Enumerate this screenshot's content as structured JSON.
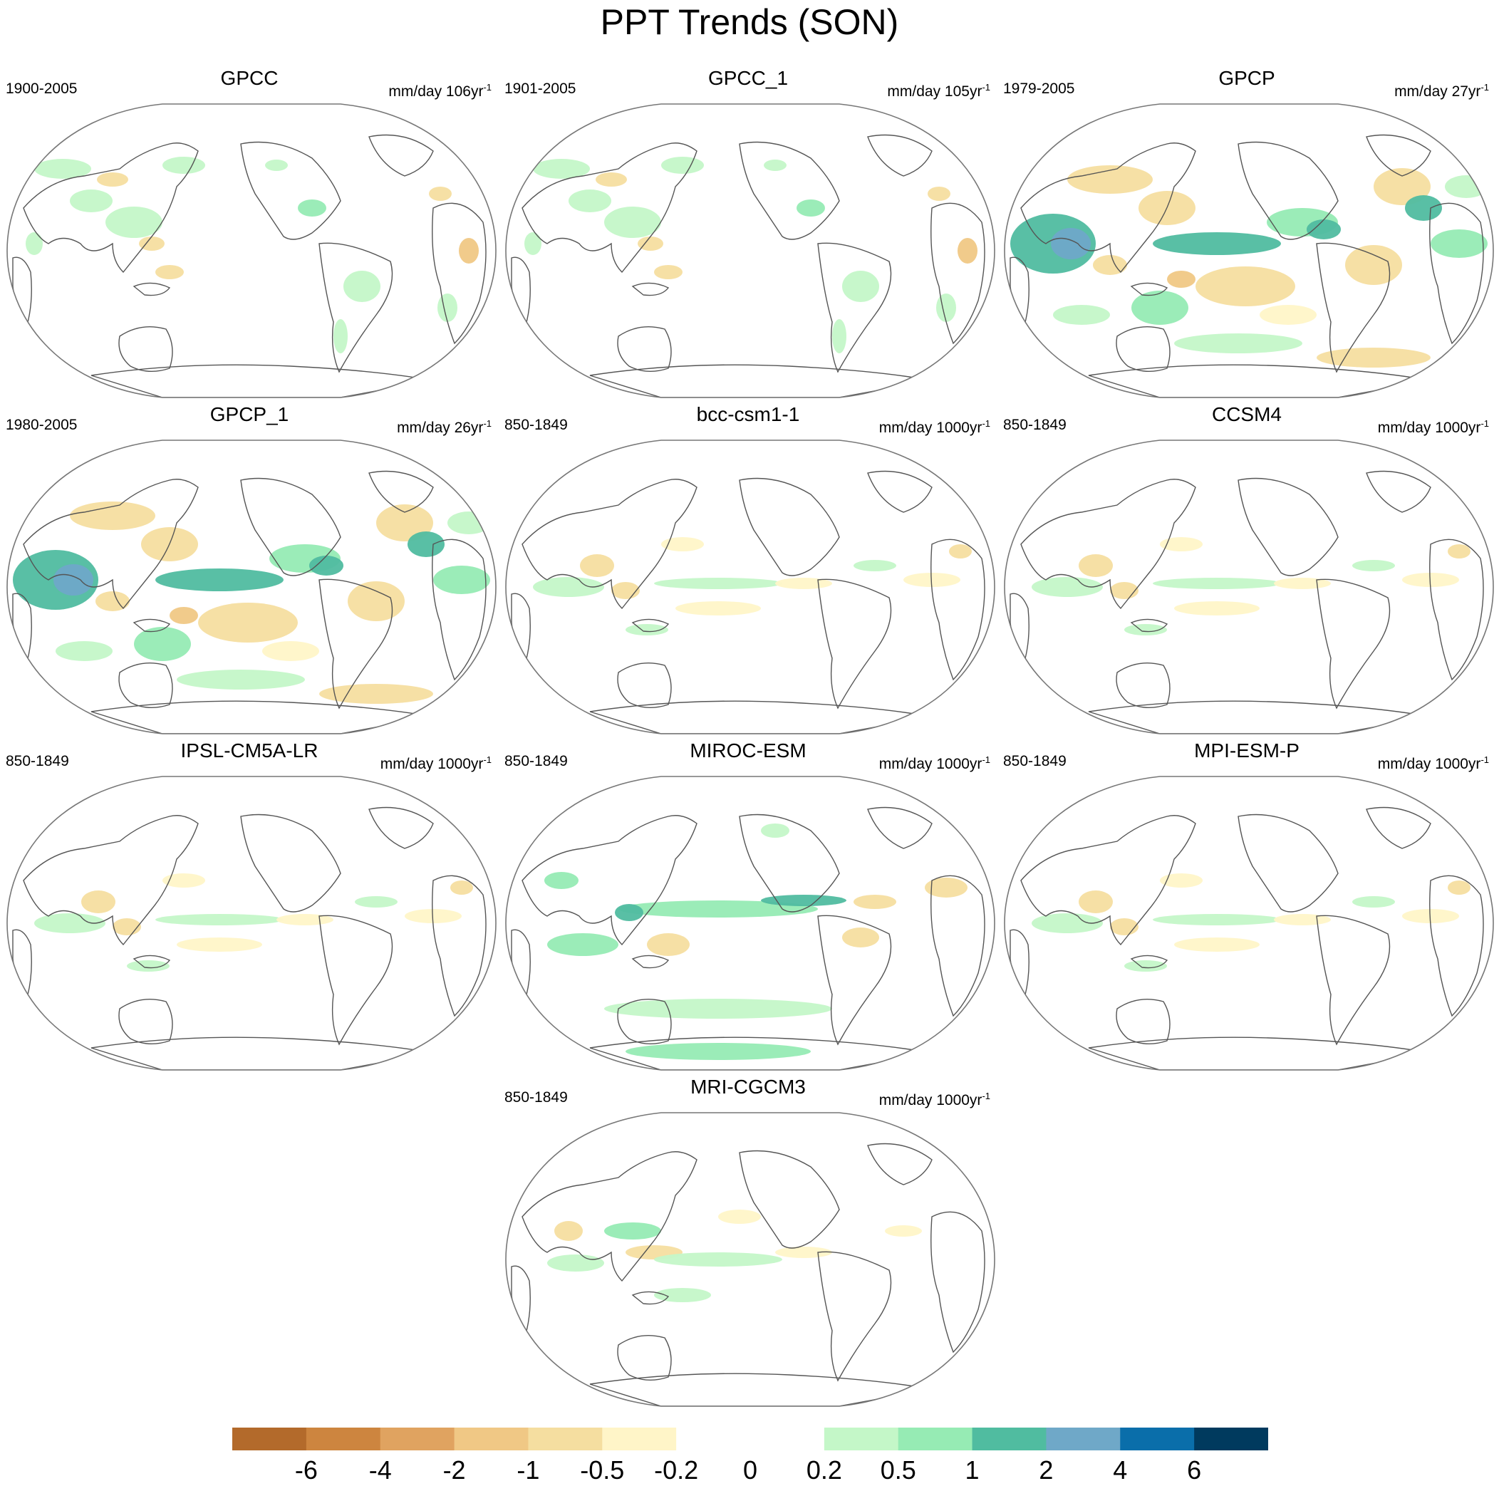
{
  "title": "PPT Trends (SON)",
  "colors": {
    "levels": [
      "#b36a2b",
      "#cd853f",
      "#e0a360",
      "#f0c885",
      "#f5dea0",
      "#fff5c8",
      "#ffffff",
      "#ffffff",
      "#c4f7c8",
      "#96ebb4",
      "#50bca0",
      "#6fa8c8",
      "#0a6eaa",
      "#003a5e"
    ],
    "coastline": "#555555",
    "frame": "#777777"
  },
  "chart_data": {
    "type": "heatmap",
    "projection": "Winkel tripel-like global map, centered on the Pacific",
    "colorbar": {
      "tick_labels": [
        "-6",
        "-4",
        "-2",
        "-1",
        "-0.5",
        "-0.2",
        "0",
        "0.2",
        "0.5",
        "1",
        "2",
        "4",
        "6"
      ],
      "levels": [
        -6,
        -4,
        -2,
        -1,
        -0.5,
        -0.2,
        0,
        0.2,
        0.5,
        1,
        2,
        4,
        6
      ]
    },
    "panels": [
      {
        "name": "GPCC",
        "period": "1900-2005",
        "units": "mm/day 106yr",
        "units_sup": "-1",
        "pattern": "obs_sparse"
      },
      {
        "name": "GPCC_1",
        "period": "1901-2005",
        "units": "mm/day 105yr",
        "units_sup": "-1",
        "pattern": "obs_sparse"
      },
      {
        "name": "GPCP",
        "period": "1979-2005",
        "units": "mm/day 27yr",
        "units_sup": "-1",
        "pattern": "obs_dense"
      },
      {
        "name": "GPCP_1",
        "period": "1980-2005",
        "units": "mm/day 26yr",
        "units_sup": "-1",
        "pattern": "obs_dense"
      },
      {
        "name": "bcc-csm1-1",
        "period": "850-1849",
        "units": "mm/day 1000yr",
        "units_sup": "-1",
        "pattern": "model_weak"
      },
      {
        "name": "CCSM4",
        "period": "850-1849",
        "units": "mm/day 1000yr",
        "units_sup": "-1",
        "pattern": "model_weak"
      },
      {
        "name": "IPSL-CM5A-LR",
        "period": "850-1849",
        "units": "mm/day 1000yr",
        "units_sup": "-1",
        "pattern": "model_weak"
      },
      {
        "name": "MIROC-ESM",
        "period": "850-1849",
        "units": "mm/day 1000yr",
        "units_sup": "-1",
        "pattern": "model_strong"
      },
      {
        "name": "MPI-ESM-P",
        "period": "850-1849",
        "units": "mm/day 1000yr",
        "units_sup": "-1",
        "pattern": "model_weak"
      },
      {
        "name": "MRI-CGCM3",
        "period": "850-1849",
        "units": "mm/day 1000yr",
        "units_sup": "-1",
        "pattern": "model_mid"
      }
    ]
  }
}
